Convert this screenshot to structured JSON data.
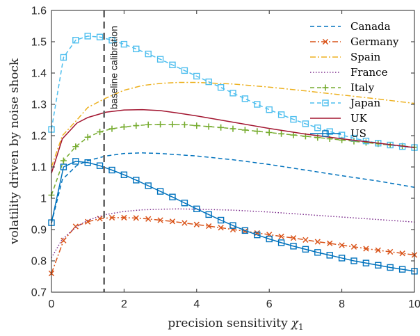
{
  "chart_data": {
    "type": "line",
    "xlabel": "precision sensitivity",
    "xlabel_symbol": "χ",
    "xlabel_subscript": "1",
    "ylabel": "volatility driven by noise shock",
    "xlim": [
      0,
      10
    ],
    "ylim": [
      0.7,
      1.6
    ],
    "x_ticks": [
      0,
      2,
      4,
      6,
      8,
      10
    ],
    "y_ticks": [
      0.7,
      0.8,
      0.9,
      1,
      1.1,
      1.2,
      1.3,
      1.4,
      1.5,
      1.6
    ],
    "x_tick_labels": [
      "0",
      "2",
      "4",
      "6",
      "8",
      "10"
    ],
    "y_tick_labels": [
      "0.7",
      "0.8",
      "0.9",
      "1",
      "1.1",
      "1.2",
      "1.3",
      "1.4",
      "1.5",
      "1.6"
    ],
    "grid": false,
    "legend_position": "top-right",
    "annotation": {
      "label": "baseline calibration",
      "x": 1.45
    },
    "series": [
      {
        "name": "Canada",
        "color": "#0072BD",
        "dash": "dashed",
        "marker": "none",
        "points": [
          [
            0,
            0.92
          ],
          [
            0.3,
            1.06
          ],
          [
            0.7,
            1.105
          ],
          [
            1,
            1.12
          ],
          [
            1.5,
            1.135
          ],
          [
            2,
            1.143
          ],
          [
            2.5,
            1.145
          ],
          [
            3,
            1.143
          ],
          [
            4,
            1.135
          ],
          [
            5,
            1.123
          ],
          [
            6,
            1.108
          ],
          [
            7,
            1.09
          ],
          [
            8,
            1.072
          ],
          [
            9,
            1.055
          ],
          [
            10,
            1.035
          ]
        ]
      },
      {
        "name": "Germany",
        "color": "#D95319",
        "dash": "dashdot",
        "marker": "x",
        "points": [
          [
            0,
            0.76
          ],
          [
            0.333,
            0.865
          ],
          [
            0.667,
            0.91
          ],
          [
            1,
            0.925
          ],
          [
            1.333,
            0.935
          ],
          [
            1.667,
            0.938
          ],
          [
            2,
            0.938
          ],
          [
            2.333,
            0.937
          ],
          [
            2.667,
            0.934
          ],
          [
            3,
            0.93
          ],
          [
            3.333,
            0.926
          ],
          [
            3.667,
            0.921
          ],
          [
            4,
            0.916
          ],
          [
            4.333,
            0.911
          ],
          [
            4.667,
            0.906
          ],
          [
            5,
            0.9
          ],
          [
            5.333,
            0.895
          ],
          [
            5.667,
            0.889
          ],
          [
            6,
            0.884
          ],
          [
            6.333,
            0.878
          ],
          [
            6.667,
            0.873
          ],
          [
            7,
            0.867
          ],
          [
            7.333,
            0.861
          ],
          [
            7.667,
            0.856
          ],
          [
            8,
            0.85
          ],
          [
            8.333,
            0.845
          ],
          [
            8.667,
            0.839
          ],
          [
            9,
            0.834
          ],
          [
            9.333,
            0.829
          ],
          [
            9.667,
            0.824
          ],
          [
            10,
            0.819
          ]
        ]
      },
      {
        "name": "Spain",
        "color": "#EDB120",
        "dash": "dashdot",
        "marker": "none",
        "points": [
          [
            0,
            1.1
          ],
          [
            0.3,
            1.2
          ],
          [
            0.7,
            1.25
          ],
          [
            1,
            1.29
          ],
          [
            1.5,
            1.32
          ],
          [
            2,
            1.345
          ],
          [
            2.5,
            1.36
          ],
          [
            3,
            1.367
          ],
          [
            3.5,
            1.37
          ],
          [
            4,
            1.37
          ],
          [
            5,
            1.365
          ],
          [
            6,
            1.355
          ],
          [
            7,
            1.343
          ],
          [
            8,
            1.33
          ],
          [
            9,
            1.317
          ],
          [
            10,
            1.303
          ]
        ]
      },
      {
        "name": "France",
        "color": "#7E2F8E",
        "dash": "dotted",
        "marker": "none",
        "points": [
          [
            0,
            0.81
          ],
          [
            0.3,
            0.87
          ],
          [
            0.7,
            0.91
          ],
          [
            1,
            0.93
          ],
          [
            1.5,
            0.948
          ],
          [
            2,
            0.958
          ],
          [
            2.5,
            0.963
          ],
          [
            3,
            0.965
          ],
          [
            3.5,
            0.966
          ],
          [
            4,
            0.965
          ],
          [
            5,
            0.962
          ],
          [
            6,
            0.956
          ],
          [
            7,
            0.948
          ],
          [
            8,
            0.94
          ],
          [
            9,
            0.932
          ],
          [
            10,
            0.924
          ]
        ]
      },
      {
        "name": "Italy",
        "color": "#77AC30",
        "dash": "dashed",
        "marker": "plus",
        "points": [
          [
            0,
            1.01
          ],
          [
            0.333,
            1.12
          ],
          [
            0.667,
            1.165
          ],
          [
            1,
            1.195
          ],
          [
            1.333,
            1.212
          ],
          [
            1.667,
            1.222
          ],
          [
            2,
            1.228
          ],
          [
            2.333,
            1.232
          ],
          [
            2.667,
            1.235
          ],
          [
            3,
            1.236
          ],
          [
            3.333,
            1.236
          ],
          [
            3.667,
            1.235
          ],
          [
            4,
            1.232
          ],
          [
            4.333,
            1.229
          ],
          [
            4.667,
            1.226
          ],
          [
            5,
            1.222
          ],
          [
            5.333,
            1.218
          ],
          [
            5.667,
            1.214
          ],
          [
            6,
            1.21
          ],
          [
            6.333,
            1.206
          ],
          [
            6.667,
            1.202
          ],
          [
            7,
            1.198
          ],
          [
            7.333,
            1.194
          ],
          [
            7.667,
            1.19
          ],
          [
            8,
            1.186
          ],
          [
            8.333,
            1.182
          ],
          [
            8.667,
            1.178
          ],
          [
            9,
            1.174
          ],
          [
            9.333,
            1.17
          ],
          [
            9.667,
            1.167
          ],
          [
            10,
            1.163
          ]
        ]
      },
      {
        "name": "Japan",
        "color": "#4DBEEE",
        "dash": "dashed",
        "marker": "square",
        "points": [
          [
            0,
            1.22
          ],
          [
            0.333,
            1.45
          ],
          [
            0.667,
            1.505
          ],
          [
            1,
            1.518
          ],
          [
            1.333,
            1.515
          ],
          [
            1.667,
            1.505
          ],
          [
            2,
            1.492
          ],
          [
            2.333,
            1.477
          ],
          [
            2.667,
            1.461
          ],
          [
            3,
            1.444
          ],
          [
            3.333,
            1.426
          ],
          [
            3.667,
            1.408
          ],
          [
            4,
            1.39
          ],
          [
            4.333,
            1.372
          ],
          [
            4.667,
            1.354
          ],
          [
            5,
            1.336
          ],
          [
            5.333,
            1.318
          ],
          [
            5.667,
            1.3
          ],
          [
            6,
            1.283
          ],
          [
            6.333,
            1.267
          ],
          [
            6.667,
            1.252
          ],
          [
            7,
            1.238
          ],
          [
            7.333,
            1.225
          ],
          [
            7.667,
            1.213
          ],
          [
            8,
            1.202
          ],
          [
            8.333,
            1.192
          ],
          [
            8.667,
            1.183
          ],
          [
            9,
            1.176
          ],
          [
            9.333,
            1.17
          ],
          [
            9.667,
            1.165
          ],
          [
            10,
            1.162
          ]
        ]
      },
      {
        "name": "UK",
        "color": "#A2142F",
        "dash": "solid",
        "marker": "none",
        "points": [
          [
            0,
            1.08
          ],
          [
            0.3,
            1.19
          ],
          [
            0.7,
            1.24
          ],
          [
            1,
            1.258
          ],
          [
            1.5,
            1.275
          ],
          [
            2,
            1.282
          ],
          [
            2.5,
            1.283
          ],
          [
            3,
            1.28
          ],
          [
            3.5,
            1.272
          ],
          [
            4,
            1.263
          ],
          [
            5,
            1.243
          ],
          [
            6,
            1.223
          ],
          [
            7,
            1.205
          ],
          [
            8,
            1.19
          ],
          [
            9,
            1.176
          ],
          [
            10,
            1.162
          ]
        ]
      },
      {
        "name": "US",
        "color": "#0072BD",
        "dash": "solid",
        "marker": "square",
        "points": [
          [
            0,
            0.922
          ],
          [
            0.333,
            1.1
          ],
          [
            0.667,
            1.118
          ],
          [
            1,
            1.114
          ],
          [
            1.333,
            1.104
          ],
          [
            1.667,
            1.09
          ],
          [
            2,
            1.075
          ],
          [
            2.333,
            1.058
          ],
          [
            2.667,
            1.04
          ],
          [
            3,
            1.022
          ],
          [
            3.333,
            1.004
          ],
          [
            3.667,
            0.985
          ],
          [
            4,
            0.966
          ],
          [
            4.333,
            0.948
          ],
          [
            4.667,
            0.93
          ],
          [
            5,
            0.913
          ],
          [
            5.333,
            0.897
          ],
          [
            5.667,
            0.883
          ],
          [
            6,
            0.87
          ],
          [
            6.333,
            0.858
          ],
          [
            6.667,
            0.847
          ],
          [
            7,
            0.837
          ],
          [
            7.333,
            0.827
          ],
          [
            7.667,
            0.818
          ],
          [
            8,
            0.809
          ],
          [
            8.333,
            0.8
          ],
          [
            8.667,
            0.793
          ],
          [
            9,
            0.786
          ],
          [
            9.333,
            0.779
          ],
          [
            9.667,
            0.773
          ],
          [
            10,
            0.767
          ]
        ]
      }
    ]
  }
}
